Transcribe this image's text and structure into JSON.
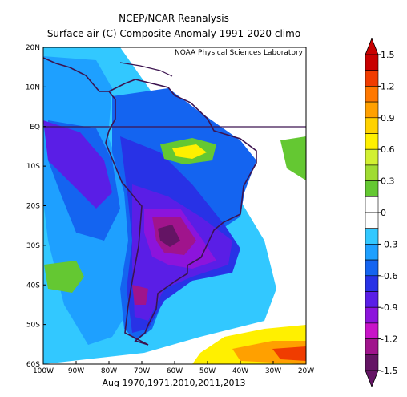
{
  "header": {
    "title": "NCEP/NCAR Reanalysis",
    "subtitle": "Surface air (C) Composite Anomaly 1991-2020 climo"
  },
  "map": {
    "credit": "NOAA Physical Sciences Laboratory",
    "lat_labels": [
      "20N",
      "10N",
      "EQ",
      "10S",
      "20S",
      "30S",
      "40S",
      "50S",
      "60S"
    ],
    "lon_labels": [
      "100W",
      "90W",
      "80W",
      "70W",
      "60W",
      "50W",
      "40W",
      "30W",
      "20W"
    ],
    "footer": "Aug 1970,1971,2010,2011,2013"
  },
  "colorbar": {
    "ticks": [
      1.5,
      1.2,
      0.9,
      0.6,
      0.3,
      0,
      -0.3,
      -0.6,
      -0.9,
      -1.2,
      -1.5
    ],
    "colors": [
      "#c80000",
      "#f03c00",
      "#ff7800",
      "#ffa000",
      "#ffd200",
      "#fff000",
      "#d2f032",
      "#a0dc32",
      "#64c832",
      "#ffffff",
      "#ffffff",
      "#32c8ff",
      "#1ea0ff",
      "#1464f0",
      "#2832e6",
      "#5a1ee6",
      "#8c14dc",
      "#c814c8",
      "#a0148c",
      "#641464"
    ]
  }
}
